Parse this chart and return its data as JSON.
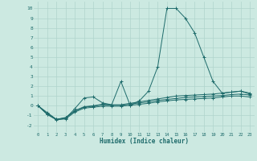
{
  "xlabel": "Humidex (Indice chaleur)",
  "xlim": [
    -0.5,
    23.5
  ],
  "ylim": [
    -2.7,
    10.7
  ],
  "xticks": [
    0,
    1,
    2,
    3,
    4,
    5,
    6,
    7,
    8,
    9,
    10,
    11,
    12,
    13,
    14,
    15,
    16,
    17,
    18,
    19,
    20,
    21,
    22,
    23
  ],
  "yticks": [
    -2,
    -1,
    0,
    1,
    2,
    3,
    4,
    5,
    6,
    7,
    8,
    9,
    10
  ],
  "background_color": "#cce9e1",
  "grid_color": "#b0d4cc",
  "line_color": "#1e6b6b",
  "series": [
    [
      0.0,
      -0.7,
      -1.4,
      -1.3,
      -0.3,
      0.8,
      0.9,
      0.3,
      0.1,
      2.5,
      0.05,
      0.5,
      1.5,
      4.0,
      10.0,
      10.0,
      9.0,
      7.5,
      5.0,
      2.5,
      1.3,
      1.4,
      1.5,
      1.2
    ],
    [
      0.0,
      -0.8,
      -1.4,
      -1.2,
      -0.5,
      -0.1,
      0.0,
      0.15,
      0.1,
      0.1,
      0.25,
      0.4,
      0.55,
      0.7,
      0.85,
      1.0,
      1.05,
      1.1,
      1.15,
      1.2,
      1.3,
      1.4,
      1.5,
      1.3
    ],
    [
      0.0,
      -0.85,
      -1.4,
      -1.25,
      -0.55,
      -0.15,
      -0.05,
      0.1,
      0.05,
      0.05,
      0.15,
      0.3,
      0.4,
      0.55,
      0.65,
      0.75,
      0.85,
      0.9,
      0.95,
      1.0,
      1.05,
      1.15,
      1.2,
      1.1
    ],
    [
      0.0,
      -0.9,
      -1.45,
      -1.35,
      -0.65,
      -0.25,
      -0.15,
      -0.05,
      -0.05,
      -0.05,
      0.05,
      0.15,
      0.25,
      0.4,
      0.5,
      0.6,
      0.65,
      0.7,
      0.75,
      0.8,
      0.9,
      1.0,
      1.0,
      0.9
    ]
  ]
}
